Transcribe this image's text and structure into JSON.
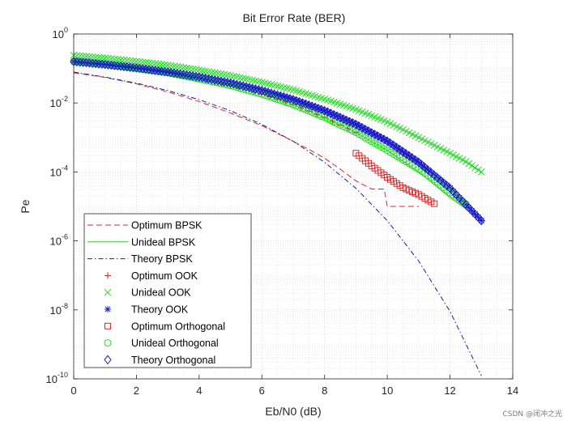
{
  "watermark": "CSDN @闭冲之光",
  "chart_data": {
    "type": "line",
    "title": "Bit Error Rate (BER)",
    "xlabel": "Eb/N0 (dB)",
    "ylabel": "Pe",
    "xlim": [
      0,
      14
    ],
    "ylim_log10": [
      -10,
      0
    ],
    "yscale": "log",
    "grid": "on (major and minor, dotted)",
    "legend_location": "bottom-left",
    "x_ticks": [
      "0",
      "2",
      "4",
      "6",
      "8",
      "10",
      "12",
      "14"
    ],
    "y_ticks": [
      {
        "base": "10",
        "exp": "0"
      },
      {
        "base": "10",
        "exp": "-2"
      },
      {
        "base": "10",
        "exp": "-4"
      },
      {
        "base": "10",
        "exp": "-6"
      },
      {
        "base": "10",
        "exp": "-8"
      },
      {
        "base": "10",
        "exp": "-10"
      }
    ],
    "series": [
      {
        "name": "Optimum BPSK",
        "style": "dashed",
        "marker": "none",
        "color": "#d62728",
        "x": [
          0,
          1,
          2,
          3,
          4,
          5,
          6,
          7,
          7.5,
          8,
          8.5,
          9,
          9.5,
          9.9,
          10,
          10.5,
          11
        ],
        "y": [
          0.075,
          0.055,
          0.036,
          0.021,
          0.011,
          0.0051,
          0.0022,
          0.00077,
          0.00045,
          0.00025,
          0.00012,
          5.5e-05,
          3.2e-05,
          3.2e-05,
          1e-05,
          1e-05,
          1e-05
        ]
      },
      {
        "name": "Unideal BPSK",
        "style": "solid",
        "marker": "none",
        "color": "#2ecc2e",
        "x": [
          0,
          1,
          2,
          3,
          4,
          5,
          6,
          7,
          8,
          9,
          10,
          11,
          12,
          12.5,
          13
        ],
        "y": [
          0.16,
          0.13,
          0.1,
          0.075,
          0.05,
          0.032,
          0.018,
          0.009,
          0.0038,
          0.0014,
          0.00042,
          0.0001,
          1.8e-05,
          8.5e-06,
          4e-06
        ]
      },
      {
        "name": "Theory BPSK",
        "style": "dash-dot",
        "marker": "none",
        "color": "#1a1aa6",
        "x": [
          0,
          1,
          2,
          3,
          4,
          5,
          6,
          7,
          8,
          9,
          10,
          11,
          12,
          13
        ],
        "y": [
          0.0786,
          0.0563,
          0.0375,
          0.0229,
          0.0125,
          0.00595,
          0.00239,
          0.000773,
          0.000191,
          3.36e-05,
          3.87e-06,
          2.62e-07,
          9.01e-09,
          1.23e-10
        ]
      },
      {
        "name": "Optimum OOK",
        "style": "none",
        "marker": "plus",
        "color": "#c81e1e",
        "x": [
          0,
          1,
          2,
          3,
          4,
          5,
          6,
          7,
          8,
          9
        ],
        "y": [
          0.16,
          0.13,
          0.1,
          0.075,
          0.05,
          0.032,
          0.018,
          0.009,
          0.0038,
          0.0014
        ]
      },
      {
        "name": "Unideal OOK",
        "style": "none",
        "marker": "x",
        "color": "#22dd22",
        "x": [
          0,
          1,
          2,
          3,
          4,
          5,
          6,
          7,
          8,
          9,
          10,
          11,
          12,
          12.5,
          13
        ],
        "y": [
          0.24,
          0.2,
          0.16,
          0.125,
          0.09,
          0.062,
          0.04,
          0.024,
          0.013,
          0.0065,
          0.0028,
          0.001,
          0.00035,
          0.0002,
          0.0001
        ]
      },
      {
        "name": "Theory OOK",
        "style": "none",
        "marker": "asterisk",
        "color": "#1a1ac8",
        "x": [
          0,
          1,
          2,
          3,
          4,
          5,
          6,
          7,
          8,
          9,
          10,
          11,
          12,
          13
        ],
        "y": [
          0.159,
          0.131,
          0.104,
          0.0789,
          0.0565,
          0.0377,
          0.023,
          0.0126,
          0.006,
          0.0024,
          0.00078,
          0.00019,
          3.4e-05,
          3.9e-06
        ]
      },
      {
        "name": "Optimum Orthogonal",
        "style": "none",
        "marker": "square",
        "color": "#d62728",
        "x": [
          9,
          9.5,
          10,
          10.5,
          11,
          11.5
        ],
        "y": [
          0.00035,
          0.00015,
          7e-05,
          3.5e-05,
          2.2e-05,
          1.2e-05
        ]
      },
      {
        "name": "Unideal Orthogonal",
        "style": "none",
        "marker": "circle",
        "color": "#22dd22",
        "x": [
          0,
          1,
          2,
          3,
          4,
          5,
          6,
          7,
          8,
          9,
          10,
          11,
          11.5,
          12,
          12.5
        ],
        "y": [
          0.16,
          0.13,
          0.1,
          0.075,
          0.05,
          0.032,
          0.018,
          0.009,
          0.0038,
          0.0014,
          0.00042,
          0.00012,
          6e-05,
          2.5e-05,
          1.2e-05
        ]
      },
      {
        "name": "Theory Orthogonal",
        "style": "none",
        "marker": "diamond",
        "color": "#1a1ac8",
        "x": [
          0,
          1,
          2,
          3,
          4,
          5,
          6,
          7,
          8,
          9,
          10,
          11,
          12,
          13
        ],
        "y": [
          0.1587,
          0.1309,
          0.104,
          0.0789,
          0.0565,
          0.0377,
          0.0229,
          0.0125,
          0.006,
          0.00239,
          0.00078,
          0.000191,
          3.36e-05,
          3.87e-06
        ]
      }
    ]
  }
}
